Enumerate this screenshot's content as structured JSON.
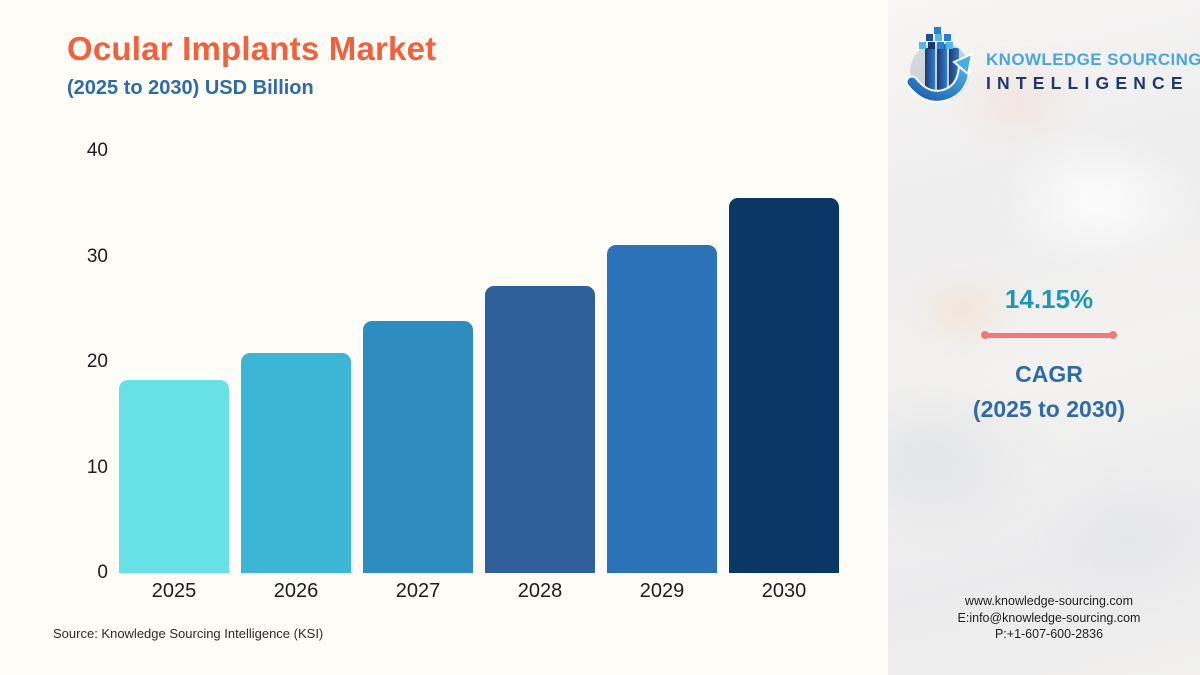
{
  "header": {
    "title": "Ocular Implants Market",
    "subtitle": "(2025 to 2030) USD Billion",
    "title_color": "#F2613E",
    "subtitle_color": "#2E6BA7"
  },
  "logo": {
    "line1": "KNOWLEDGE SOURCING",
    "line2": "INTELLIGENCE",
    "line1_color": "#4BA7DB",
    "line2_color": "#21386B",
    "mark": "globe-bars-arrow-icon"
  },
  "chart_data": {
    "type": "bar",
    "title": "Ocular Implants Market",
    "subtitle": "(2025 to 2030) USD Billion",
    "unit": "USD Billion",
    "categories": [
      "2025",
      "2026",
      "2027",
      "2028",
      "2029",
      "2030"
    ],
    "values": [
      18.3,
      20.9,
      23.9,
      27.2,
      31.1,
      35.5
    ],
    "bar_colors": [
      "#68E1E6",
      "#3CB6D4",
      "#2E8CBF",
      "#30609B",
      "#2C72B8",
      "#0A3766"
    ],
    "ylim": [
      0,
      40
    ],
    "yticks": [
      0,
      10,
      20,
      30,
      40
    ],
    "grid": false,
    "legend": false
  },
  "cagr": {
    "value": "14.15%",
    "label1": "CAGR",
    "label2": "(2025 to 2030)",
    "value_color": "#1E97B4",
    "label_color": "#2E6BA7",
    "line_color": "#F2797B"
  },
  "source": {
    "text": "Source: Knowledge Sourcing Intelligence (KSI)"
  },
  "contact": {
    "website": "www.knowledge-sourcing.com",
    "email": "E:info@knowledge-sourcing.com",
    "phone": "P:+1-607-600-2836"
  }
}
